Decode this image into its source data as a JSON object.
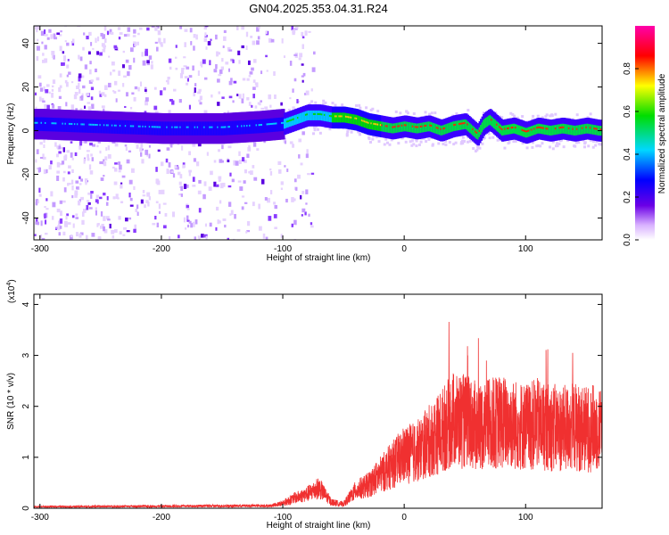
{
  "title": "GN04.2025.353.04.31.R24",
  "chart_data": [
    {
      "type": "heatmap",
      "xlabel": "Height of straight line (km)",
      "ylabel": "Frequency (Hz)",
      "xlim": [
        -305,
        163
      ],
      "ylim": [
        -50,
        48
      ],
      "x_ticks": [
        -300,
        -200,
        -100,
        0,
        100
      ],
      "y_ticks": [
        -40,
        -20,
        0,
        20,
        40
      ],
      "colorbar": {
        "label": "Normalized spectral amplitude",
        "range": [
          0,
          1
        ],
        "ticks": [
          "0.0",
          "0.2",
          "0.4",
          "0.6",
          "0.8"
        ],
        "colormap": "rainbow (white-violet-blue-cyan-green-yellow-red-magenta)"
      },
      "ridge_frequency": {
        "x": [
          -300,
          -250,
          -200,
          -150,
          -120,
          -100,
          -90,
          -80,
          -70,
          -60,
          -50,
          -40,
          -30,
          -20,
          -10,
          0,
          10,
          20,
          30,
          40,
          50,
          60,
          65,
          70,
          80,
          90,
          100,
          110,
          120,
          130,
          140,
          150,
          160
        ],
        "y": [
          3,
          2,
          1,
          1,
          2,
          3,
          5,
          7,
          7,
          6,
          6,
          5,
          3,
          2,
          1,
          2,
          1,
          2,
          0,
          2,
          3,
          -2,
          3,
          5,
          0,
          1,
          -1,
          1,
          0,
          1,
          0,
          1,
          0
        ]
      }
    },
    {
      "type": "line",
      "xlabel": "Height of straight line (km)",
      "ylabel": "SNR (10 * v/v)",
      "scale_label_prefix": "(x10",
      "scale_label_exp": "4",
      "scale_label_suffix": ")",
      "xlim": [
        -305,
        163
      ],
      "ylim": [
        0,
        4.2
      ],
      "x_ticks": [
        -300,
        -200,
        -100,
        0,
        100
      ],
      "y_ticks": [
        0,
        1,
        2,
        3,
        4
      ],
      "color": "#f03030",
      "envelope": {
        "x": [
          -305,
          -200,
          -110,
          -100,
          -90,
          -80,
          -70,
          -60,
          -50,
          -40,
          -30,
          -20,
          -10,
          0,
          10,
          20,
          30,
          40,
          50,
          60,
          70,
          80,
          90,
          100,
          110,
          120,
          130,
          140,
          150,
          163
        ],
        "y": [
          0.03,
          0.04,
          0.05,
          0.1,
          0.2,
          0.28,
          0.4,
          0.12,
          0.08,
          0.35,
          0.45,
          0.65,
          0.85,
          1.05,
          1.1,
          1.3,
          1.5,
          1.75,
          1.7,
          1.6,
          1.65,
          1.7,
          1.65,
          1.6,
          1.65,
          1.6,
          1.55,
          1.6,
          1.55,
          1.6
        ]
      }
    }
  ]
}
